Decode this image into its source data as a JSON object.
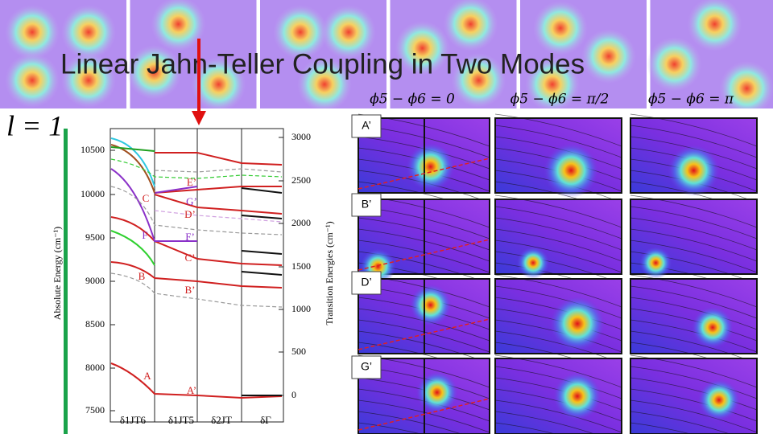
{
  "title": "Linear Jahn-Teller Coupling in Two Modes",
  "l_label": "l = 1",
  "phase_labels": [
    "ϕ5 − ϕ6 = 0",
    "ϕ5 − ϕ6 = π/2",
    "ϕ5 − ϕ6 = π"
  ],
  "state_boxes": [
    "A’",
    "B’",
    "D’",
    "G’"
  ],
  "plot": {
    "y_left_title": "Absolute Energy (cm⁻¹)",
    "y_right_title": "Transition Energies (cm⁻¹)",
    "left_ticks": [
      10500,
      10000,
      9500,
      9000,
      8500,
      8000,
      7500
    ],
    "right_ticks": [
      3000,
      2500,
      2000,
      1500,
      1000,
      500,
      0
    ],
    "x_labels": [
      "δ1JT6",
      "δ1JT5",
      "δ2JT",
      "δΓ"
    ],
    "state_labels": [
      "E’",
      "G’",
      "D’",
      "C",
      "F",
      "F’",
      "C’",
      "B",
      "B’",
      "A",
      "A’"
    ]
  }
}
